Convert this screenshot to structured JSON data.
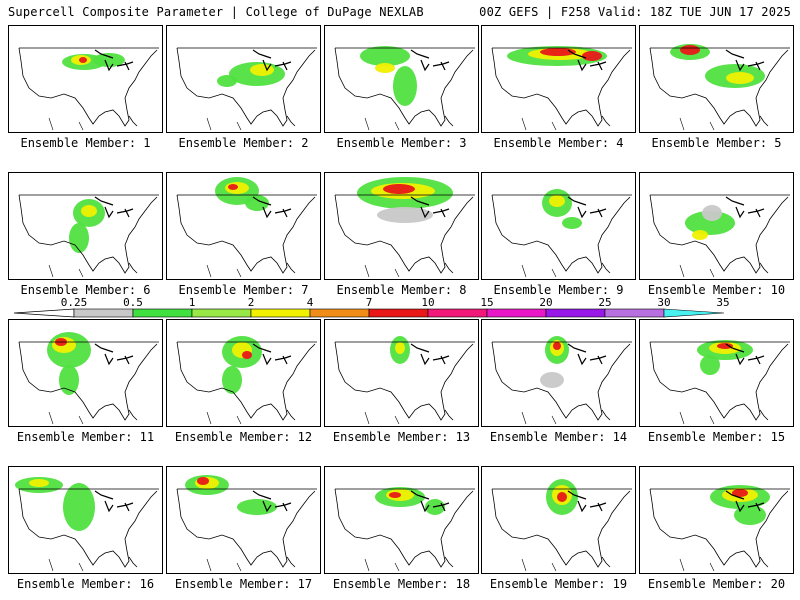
{
  "header": {
    "title": "Supercell Composite Parameter | College of DuPage NEXLAB",
    "run_info": "00Z GEFS | F258 Valid: 18Z TUE JUN 17 2025"
  },
  "members": [
    {
      "label": "Ensemble Member: 1"
    },
    {
      "label": "Ensemble Member: 2"
    },
    {
      "label": "Ensemble Member: 3"
    },
    {
      "label": "Ensemble Member: 4"
    },
    {
      "label": "Ensemble Member: 5"
    },
    {
      "label": "Ensemble Member: 6"
    },
    {
      "label": "Ensemble Member: 7"
    },
    {
      "label": "Ensemble Member: 8"
    },
    {
      "label": "Ensemble Member: 9"
    },
    {
      "label": "Ensemble Member: 10"
    },
    {
      "label": "Ensemble Member: 11"
    },
    {
      "label": "Ensemble Member: 12"
    },
    {
      "label": "Ensemble Member: 13"
    },
    {
      "label": "Ensemble Member: 14"
    },
    {
      "label": "Ensemble Member: 15"
    },
    {
      "label": "Ensemble Member: 16"
    },
    {
      "label": "Ensemble Member: 17"
    },
    {
      "label": "Ensemble Member: 18"
    },
    {
      "label": "Ensemble Member: 19"
    },
    {
      "label": "Ensemble Member: 20"
    }
  ],
  "colorbar": {
    "labels": [
      "0.25",
      "0.5",
      "1",
      "2",
      "4",
      "7",
      "10",
      "15",
      "20",
      "25",
      "30",
      "35"
    ],
    "colors": [
      "#c8c8c8",
      "#40e040",
      "#98e848",
      "#f0f000",
      "#f08c18",
      "#e81818",
      "#f01878",
      "#e818c8",
      "#9818e8",
      "#b870e0",
      "#48f0f0"
    ]
  }
}
